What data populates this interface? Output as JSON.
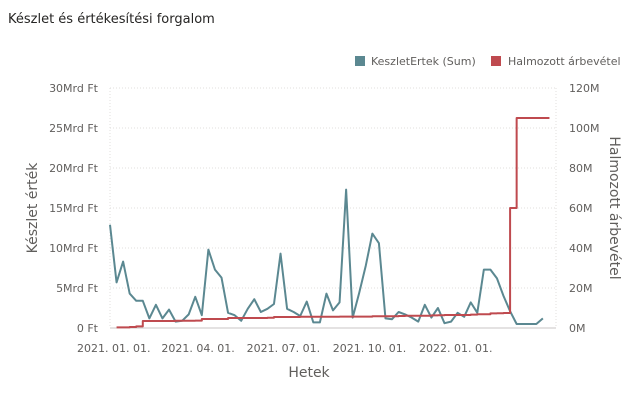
{
  "chart_data": {
    "type": "line",
    "title": "Készlet és értékesítési forgalom",
    "xlabel": "Hetek",
    "ylabel_left": "Készlet érték",
    "ylabel_right": "Halmozott árbevétel",
    "x_tick_labels": [
      "2021. 01. 01.",
      "2021. 04. 01.",
      "2021. 07. 01.",
      "2021. 10. 01.",
      "2022. 01. 01."
    ],
    "y_left_tick_labels": [
      "0 Ft",
      "5Mrd Ft",
      "10Mrd Ft",
      "15Mrd Ft",
      "20Mrd Ft",
      "25Mrd Ft",
      "30Mrd Ft"
    ],
    "y_right_tick_labels": [
      "0M",
      "20M",
      "40M",
      "60M",
      "80M",
      "100M",
      "120M"
    ],
    "ylim_left": [
      0,
      30
    ],
    "ylim_right": [
      0,
      120
    ],
    "xlim": [
      "2020-12-28",
      "2022-04-18"
    ],
    "legend": [
      "KeszletErtek (Sum)",
      "Halmozott árbevétel"
    ],
    "legend_position": "top-right",
    "colors": {
      "keszlet": "#5b8891",
      "halmozott": "#bf4a4f"
    },
    "series": [
      {
        "name": "KeszletErtek (Sum)",
        "axis": "left",
        "unit": "Mrd Ft",
        "x": [
          "2020-12-28",
          "2021-01-04",
          "2021-01-11",
          "2021-01-18",
          "2021-01-25",
          "2021-02-01",
          "2021-02-08",
          "2021-02-15",
          "2021-02-22",
          "2021-03-01",
          "2021-03-08",
          "2021-03-15",
          "2021-03-22",
          "2021-03-29",
          "2021-04-05",
          "2021-04-12",
          "2021-04-19",
          "2021-04-26",
          "2021-05-03",
          "2021-05-10",
          "2021-05-17",
          "2021-05-24",
          "2021-05-31",
          "2021-06-07",
          "2021-06-14",
          "2021-06-21",
          "2021-06-28",
          "2021-07-05",
          "2021-07-12",
          "2021-07-19",
          "2021-07-26",
          "2021-08-02",
          "2021-08-09",
          "2021-08-16",
          "2021-08-23",
          "2021-08-30",
          "2021-09-06",
          "2021-09-13",
          "2021-09-20",
          "2021-09-27",
          "2021-10-04",
          "2021-10-11",
          "2021-10-18",
          "2021-10-25",
          "2021-11-01",
          "2021-11-08",
          "2021-11-15",
          "2021-11-22",
          "2021-11-29",
          "2021-12-06",
          "2021-12-13",
          "2021-12-20",
          "2021-12-27",
          "2022-01-03",
          "2022-01-10",
          "2022-01-17",
          "2022-01-24",
          "2022-01-31",
          "2022-02-07",
          "2022-02-14",
          "2022-02-21",
          "2022-02-28",
          "2022-03-07",
          "2022-03-14",
          "2022-03-21",
          "2022-03-28",
          "2022-04-04"
        ],
        "values": [
          12.9,
          5.7,
          8.3,
          4.3,
          3.4,
          3.4,
          1.2,
          2.9,
          1.2,
          2.3,
          0.8,
          0.9,
          1.7,
          3.9,
          1.6,
          9.8,
          7.3,
          6.3,
          1.9,
          1.6,
          0.9,
          2.4,
          3.6,
          2.0,
          2.4,
          3.0,
          9.3,
          2.4,
          2.0,
          1.5,
          3.3,
          0.7,
          0.7,
          4.3,
          2.2,
          3.2,
          17.3,
          1.3,
          4.4,
          7.8,
          11.8,
          10.6,
          1.2,
          1.1,
          2.0,
          1.7,
          1.3,
          0.8,
          2.9,
          1.3,
          2.5,
          0.6,
          0.8,
          1.9,
          1.4,
          3.2,
          1.9,
          7.3,
          7.3,
          6.2,
          4.0,
          2.1,
          0.5,
          0.5,
          0.5,
          0.5,
          1.2
        ]
      },
      {
        "name": "Halmozott árbevétel",
        "axis": "right",
        "unit": "M",
        "x": [
          "2021-01-04",
          "2021-01-11",
          "2021-01-18",
          "2021-01-25",
          "2021-02-01",
          "2021-03-01",
          "2021-03-08",
          "2021-03-29",
          "2021-04-05",
          "2021-05-03",
          "2021-06-07",
          "2021-06-14",
          "2021-06-21",
          "2021-07-19",
          "2021-08-30",
          "2021-09-27",
          "2021-10-04",
          "2021-11-01",
          "2021-11-08",
          "2021-12-06",
          "2021-12-13",
          "2021-12-20",
          "2022-01-17",
          "2022-01-24",
          "2022-02-07",
          "2022-02-14",
          "2022-02-21",
          "2022-02-28",
          "2022-03-07",
          "2022-04-11"
        ],
        "values": [
          0.3,
          0.3,
          0.5,
          0.8,
          3.5,
          3.5,
          3.6,
          3.7,
          4.5,
          5.0,
          5.0,
          5.1,
          5.5,
          5.6,
          5.7,
          5.7,
          5.9,
          6.0,
          6.1,
          6.3,
          6.4,
          6.5,
          6.7,
          6.9,
          7.3,
          7.4,
          7.5,
          60,
          105,
          105
        ]
      }
    ]
  }
}
